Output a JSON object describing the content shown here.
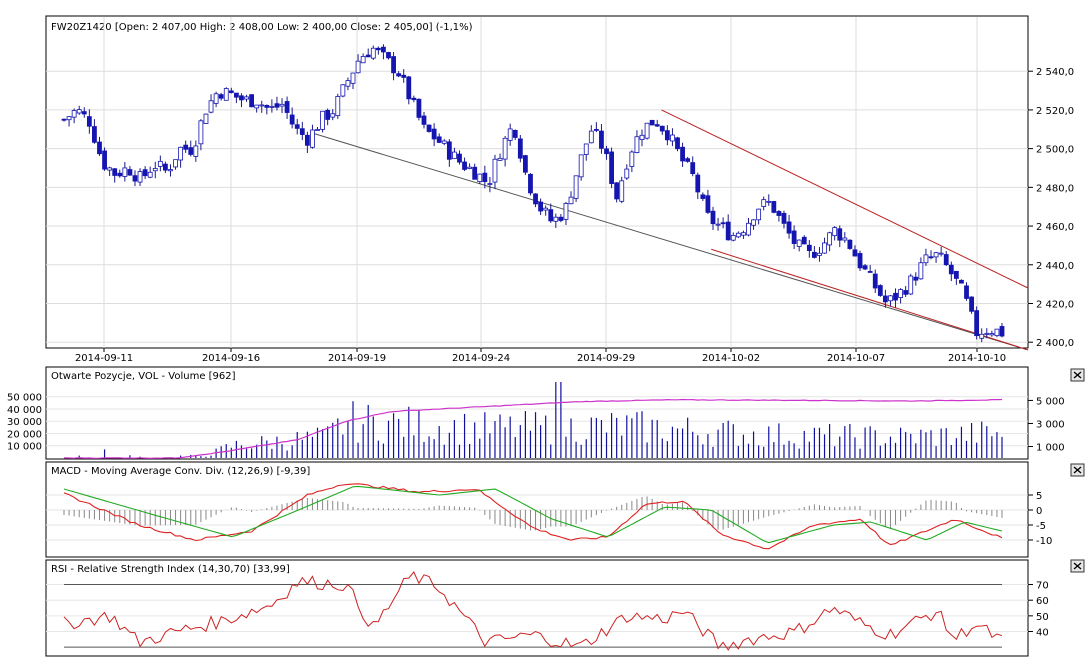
{
  "chart_data": [
    {
      "type": "candlestick",
      "title": "FW20Z1420 [Open: 2 407,00  High: 2 408,00  Low: 2 400,00  Close: 2 405,00] (-1,1%)",
      "x_tick_labels": [
        "2014-09-11",
        "2014-09-16",
        "2014-09-19",
        "2014-09-24",
        "2014-09-29",
        "2014-10-02",
        "2014-10-07",
        "2014-10-10"
      ],
      "y_tick_labels": [
        "2 540,0",
        "2 520,0",
        "2 500,0",
        "2 480,0",
        "2 460,0",
        "2 440,0",
        "2 420,0",
        "2 400,0"
      ],
      "y_ticks": [
        2540,
        2520,
        2500,
        2480,
        2460,
        2440,
        2420,
        2400
      ],
      "ylim": [
        2397,
        2568
      ],
      "grid": true,
      "trendlines": [
        {
          "color": "#555555",
          "from": [
            0.265,
            2508
          ],
          "to": [
            1.0,
            2396
          ]
        },
        {
          "color": "#bb2222",
          "from": [
            0.637,
            2520
          ],
          "to": [
            1.0,
            2428
          ]
        },
        {
          "color": "#bb2222",
          "from": [
            0.69,
            2448
          ],
          "to": [
            1.0,
            2396
          ]
        }
      ],
      "close_anchors": [
        2515,
        2520,
        2514,
        2493,
        2487,
        2490,
        2484,
        2492,
        2488,
        2500,
        2500,
        2520,
        2530,
        2528,
        2525,
        2525,
        2520,
        2523,
        2510,
        2505,
        2515,
        2520,
        2534,
        2547,
        2552,
        2546,
        2540,
        2525,
        2510,
        2505,
        2498,
        2492,
        2488,
        2482,
        2500,
        2513,
        2485,
        2470,
        2462,
        2468,
        2490,
        2510,
        2500,
        2475,
        2498,
        2510,
        2515,
        2508,
        2495,
        2485,
        2465,
        2460,
        2455,
        2460,
        2470,
        2472,
        2460,
        2450,
        2445,
        2450,
        2458,
        2452,
        2440,
        2430,
        2420,
        2425,
        2432,
        2442,
        2445,
        2436,
        2425,
        2405,
        2407,
        2405
      ]
    },
    {
      "type": "bar+line",
      "title": "Otwarte Pozycje, VOL - Volume [962]",
      "left_axis_labels": [
        "50 000",
        "40 000",
        "30 000",
        "20 000",
        "10 000"
      ],
      "left_ticks": [
        50000,
        40000,
        30000,
        20000,
        10000
      ],
      "right_axis_labels": [
        "5 000",
        "3 000",
        "1 000"
      ],
      "right_ticks": [
        5000,
        3000,
        1000
      ],
      "bar_color": "#1010a0",
      "line_color": "#cc33cc",
      "open_interest_anchors": [
        [
          0,
          4
        ],
        [
          0.12,
          40
        ],
        [
          0.17,
          5000
        ],
        [
          0.25,
          15000
        ],
        [
          0.3,
          30000
        ],
        [
          0.35,
          38000
        ],
        [
          0.45,
          42000
        ],
        [
          0.55,
          46000
        ],
        [
          0.65,
          47500
        ],
        [
          0.8,
          47000
        ],
        [
          0.9,
          46500
        ],
        [
          1.0,
          47500
        ]
      ],
      "volume_anchors": [
        [
          0,
          1500
        ],
        [
          0.15,
          2000
        ],
        [
          0.18,
          12000
        ],
        [
          0.28,
          20000
        ],
        [
          0.3,
          35000
        ],
        [
          0.45,
          28000
        ],
        [
          0.6,
          30000
        ],
        [
          0.75,
          22000
        ],
        [
          0.9,
          20000
        ],
        [
          1.0,
          24000
        ]
      ]
    },
    {
      "type": "line+histogram",
      "title": "MACD - Moving Average Conv. Div. (12,26,9) [-9,39]",
      "y_tick_labels": [
        "5",
        "0",
        "-5",
        "-10"
      ],
      "y_ticks": [
        5,
        0,
        -5,
        -10
      ],
      "series": [
        {
          "color": "#dd2222",
          "anchors": [
            [
              0,
              5.5
            ],
            [
              0.08,
              -5
            ],
            [
              0.14,
              -10
            ],
            [
              0.2,
              -7
            ],
            [
              0.26,
              5
            ],
            [
              0.3,
              9
            ],
            [
              0.38,
              6
            ],
            [
              0.44,
              7
            ],
            [
              0.5,
              -6
            ],
            [
              0.54,
              -10
            ],
            [
              0.58,
              -9
            ],
            [
              0.62,
              2
            ],
            [
              0.66,
              3
            ],
            [
              0.7,
              -8
            ],
            [
              0.75,
              -13
            ],
            [
              0.8,
              -5
            ],
            [
              0.85,
              -3
            ],
            [
              0.88,
              -12
            ],
            [
              0.95,
              -3
            ],
            [
              1.0,
              -9.4
            ]
          ]
        },
        {
          "color": "#22aa22",
          "anchors": [
            [
              0,
              7
            ],
            [
              0.1,
              -2
            ],
            [
              0.18,
              -9
            ],
            [
              0.25,
              0
            ],
            [
              0.31,
              8
            ],
            [
              0.4,
              5
            ],
            [
              0.46,
              7
            ],
            [
              0.52,
              -3
            ],
            [
              0.58,
              -9
            ],
            [
              0.64,
              1
            ],
            [
              0.69,
              0
            ],
            [
              0.75,
              -11
            ],
            [
              0.82,
              -5
            ],
            [
              0.86,
              -4
            ],
            [
              0.92,
              -10
            ],
            [
              0.96,
              -4
            ],
            [
              1.0,
              -7
            ]
          ]
        }
      ],
      "histogram_color": "#888888"
    },
    {
      "type": "line",
      "title": "RSI - Relative Strength Index (14,30,70) [33,99]",
      "y_tick_labels": [
        "70",
        "60",
        "50",
        "40"
      ],
      "y_ticks": [
        70,
        60,
        50,
        40
      ],
      "levels": [
        30,
        70
      ],
      "line_color": "#cc2222",
      "anchors": [
        [
          0,
          45
        ],
        [
          0.05,
          50
        ],
        [
          0.08,
          33
        ],
        [
          0.12,
          40
        ],
        [
          0.17,
          47
        ],
        [
          0.22,
          57
        ],
        [
          0.25,
          72
        ],
        [
          0.3,
          70
        ],
        [
          0.33,
          42
        ],
        [
          0.36,
          68
        ],
        [
          0.37,
          76
        ],
        [
          0.4,
          68
        ],
        [
          0.45,
          33
        ],
        [
          0.5,
          38
        ],
        [
          0.55,
          30
        ],
        [
          0.6,
          50
        ],
        [
          0.64,
          48
        ],
        [
          0.66,
          53
        ],
        [
          0.7,
          30
        ],
        [
          0.73,
          35
        ],
        [
          0.78,
          40
        ],
        [
          0.82,
          55
        ],
        [
          0.85,
          45
        ],
        [
          0.88,
          38
        ],
        [
          0.93,
          53
        ],
        [
          0.95,
          35
        ],
        [
          0.97,
          45
        ],
        [
          1.0,
          34
        ]
      ]
    }
  ],
  "panel_close_icon": "close-x-icon"
}
